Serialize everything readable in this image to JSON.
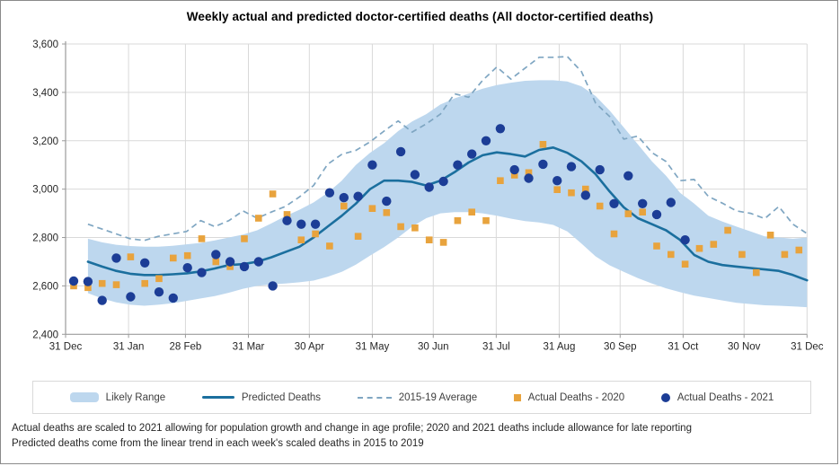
{
  "title": "Weekly actual and predicted doctor-certified deaths (All doctor-certified deaths)",
  "footnotes": [
    "Actual deaths are scaled to 2021 allowing for population growth and change in age profile; 2020 and 2021 deaths include allowance for late reporting",
    "Predicted deaths come from the linear trend in each week's scaled deaths in 2015 to 2019"
  ],
  "colors": {
    "band": "#bdd7ee",
    "predicted": "#1b6f9e",
    "average": "#7fa6c2",
    "orange": "#e8a33d",
    "navy": "#1c3d96",
    "grid": "#d9d9d9",
    "axis": "#9b9b9b",
    "tick_text": "#262626"
  },
  "chart_data": {
    "type": "line",
    "title": "Weekly actual and predicted doctor-certified deaths (All doctor-certified deaths)",
    "xlabel": "",
    "ylabel": "",
    "ylim": [
      2400,
      3600
    ],
    "grid": true,
    "legend_position": "bottom",
    "y_ticks": [
      {
        "value": 3600,
        "label": "3,600"
      },
      {
        "value": 3400,
        "label": "3,400"
      },
      {
        "value": 3200,
        "label": "3,200"
      },
      {
        "value": 3000,
        "label": "3,000"
      },
      {
        "value": 2800,
        "label": "2,800"
      },
      {
        "value": 2600,
        "label": "2,600"
      },
      {
        "value": 2400,
        "label": "2,400"
      }
    ],
    "x_ticks": [
      {
        "day": 0,
        "label": "31 Dec"
      },
      {
        "day": 31,
        "label": "31 Jan"
      },
      {
        "day": 59,
        "label": "28 Feb"
      },
      {
        "day": 90,
        "label": "31 Mar"
      },
      {
        "day": 120,
        "label": "30 Apr"
      },
      {
        "day": 151,
        "label": "31 May"
      },
      {
        "day": 181,
        "label": "30 Jun"
      },
      {
        "day": 212,
        "label": "31 Jul"
      },
      {
        "day": 243,
        "label": "31 Aug"
      },
      {
        "day": 273,
        "label": "30 Sep"
      },
      {
        "day": 304,
        "label": "31 Oct"
      },
      {
        "day": 334,
        "label": "30 Nov"
      },
      {
        "day": 365,
        "label": "31 Dec"
      }
    ],
    "legend": [
      {
        "label": "Likely Range",
        "marker": "band"
      },
      {
        "label": "Predicted Deaths",
        "marker": "line"
      },
      {
        "label": "2015-19 Average",
        "marker": "dashed-line"
      },
      {
        "label": "Actual Deaths - 2020",
        "marker": "square"
      },
      {
        "label": "Actual Deaths - 2021",
        "marker": "circle"
      }
    ],
    "series": {
      "likely_range_upper": [
        2795,
        2780,
        2770,
        2765,
        2762,
        2762,
        2766,
        2772,
        2778,
        2788,
        2800,
        2812,
        2830,
        2858,
        2888,
        2915,
        2945,
        2985,
        3035,
        3100,
        3150,
        3190,
        3240,
        3280,
        3310,
        3350,
        3375,
        3395,
        3415,
        3430,
        3440,
        3448,
        3450,
        3450,
        3445,
        3425,
        3385,
        3325,
        3255,
        3185,
        3115,
        3055,
        2985,
        2940,
        2890,
        2866,
        2845,
        2825,
        2805,
        2800,
        2795,
        2800
      ],
      "likely_range_lower": [
        2570,
        2548,
        2532,
        2522,
        2518,
        2522,
        2528,
        2538,
        2548,
        2558,
        2572,
        2588,
        2600,
        2606,
        2610,
        2615,
        2622,
        2638,
        2658,
        2688,
        2725,
        2760,
        2800,
        2845,
        2880,
        2900,
        2905,
        2905,
        2900,
        2890,
        2878,
        2868,
        2862,
        2852,
        2825,
        2775,
        2722,
        2685,
        2658,
        2632,
        2610,
        2590,
        2574,
        2560,
        2550,
        2540,
        2530,
        2525,
        2520,
        2518,
        2515,
        2512
      ],
      "predicted_deaths": [
        2700,
        2680,
        2662,
        2650,
        2645,
        2645,
        2648,
        2652,
        2660,
        2672,
        2686,
        2690,
        2700,
        2718,
        2740,
        2762,
        2800,
        2845,
        2890,
        2940,
        3000,
        3035,
        3035,
        3030,
        3015,
        3035,
        3070,
        3110,
        3140,
        3152,
        3145,
        3135,
        3162,
        3172,
        3150,
        3115,
        3062,
        2990,
        2925,
        2880,
        2855,
        2830,
        2790,
        2728,
        2700,
        2686,
        2680,
        2674,
        2668,
        2662,
        2645,
        2623
      ],
      "average_2015_19": [
        2855,
        2835,
        2815,
        2795,
        2788,
        2805,
        2815,
        2825,
        2870,
        2845,
        2870,
        2910,
        2880,
        2905,
        2928,
        2968,
        3015,
        3103,
        3144,
        3160,
        3195,
        3240,
        3282,
        3236,
        3270,
        3310,
        3394,
        3380,
        3450,
        3505,
        3455,
        3500,
        3545,
        3545,
        3548,
        3486,
        3356,
        3300,
        3207,
        3219,
        3151,
        3114,
        3035,
        3040,
        2970,
        2942,
        2910,
        2900,
        2878,
        2928,
        2855,
        2816
      ],
      "actual_2020": [
        2600,
        2593,
        2610,
        2605,
        2720,
        2610,
        2630,
        2715,
        2725,
        2795,
        2700,
        2680,
        2795,
        2880,
        2980,
        2895,
        2790,
        2815,
        2765,
        2930,
        2805,
        2920,
        2903,
        2845,
        2840,
        2790,
        2780,
        2870,
        2905,
        2870,
        3035,
        3058,
        3068,
        3185,
        2998,
        2985,
        3000,
        2930,
        2815,
        2898,
        2905,
        2765,
        2730,
        2690,
        2755,
        2772,
        2830,
        2730,
        2655,
        2810,
        2730,
        2748
      ],
      "actual_2021": [
        2620,
        2618,
        2540,
        2715,
        2555,
        2695,
        2575,
        2550,
        2675,
        2655,
        2730,
        2700,
        2680,
        2700,
        2600,
        2870,
        2855,
        2855,
        2985,
        2965,
        2970,
        3100,
        2950,
        3155,
        3060,
        3008,
        3032,
        3100,
        3145,
        3200,
        3250,
        3080,
        3045,
        3103,
        3035,
        3093,
        2975,
        3080,
        2940,
        3055,
        2940,
        2895,
        2945,
        2790
      ]
    }
  }
}
